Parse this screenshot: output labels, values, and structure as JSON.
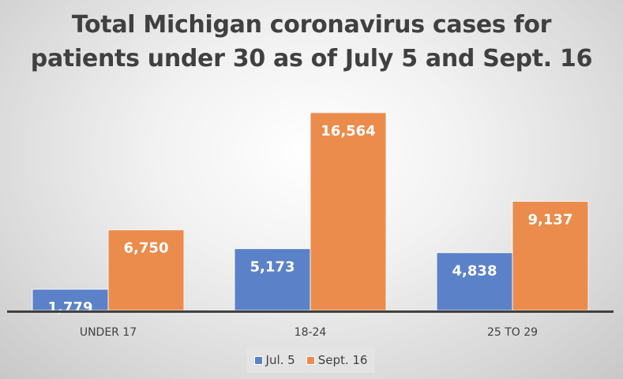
{
  "chart_data": {
    "type": "bar",
    "title_lines": [
      "Total Michigan coronavirus cases for",
      "patients under 30 as of July 5 and Sept. 16"
    ],
    "categories": [
      "UNDER 17",
      "18-24",
      "25 TO 29"
    ],
    "series": [
      {
        "name": "Jul. 5",
        "values": [
          1779,
          5173,
          4838
        ],
        "labels": [
          "1,779",
          "5,173",
          "4,838"
        ],
        "color": "#5b82c8"
      },
      {
        "name": "Sept. 16",
        "values": [
          6750,
          16564,
          9137
        ],
        "labels": [
          "6,750",
          "16,564",
          "9,137"
        ],
        "color": "#eb8c4c"
      }
    ],
    "xlabel": "",
    "ylabel": "",
    "ylim": [
      0,
      18000
    ],
    "grid": false,
    "legend_position": "bottom"
  }
}
